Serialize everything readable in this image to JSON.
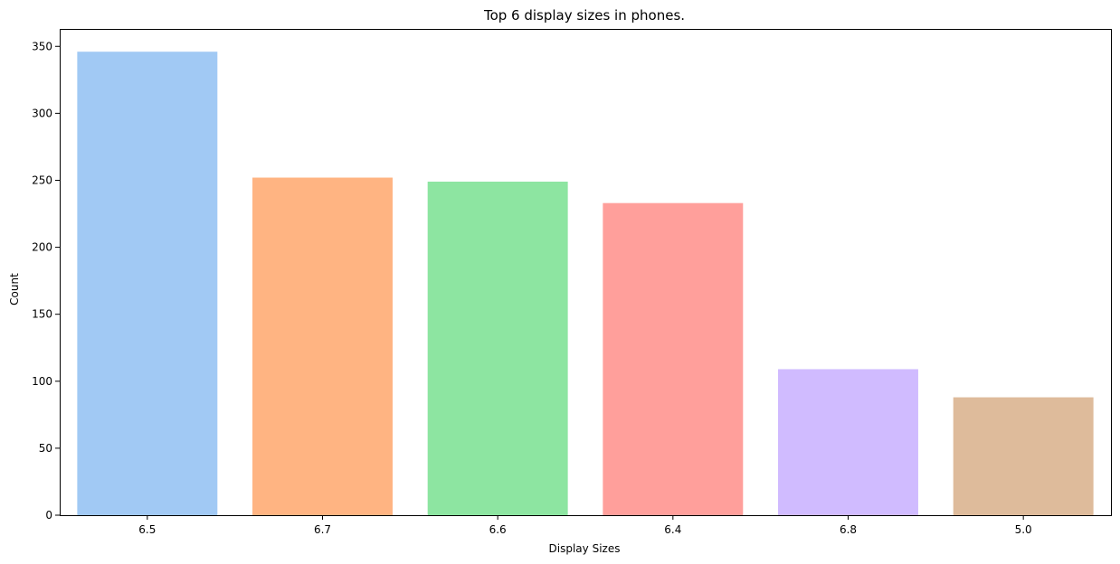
{
  "chart_data": {
    "type": "bar",
    "title": "Top 6 display sizes in phones.",
    "xlabel": "Display Sizes",
    "ylabel": "Count",
    "categories": [
      "6.5",
      "6.7",
      "6.6",
      "6.4",
      "6.8",
      "5.0"
    ],
    "values": [
      346,
      252,
      249,
      233,
      109,
      88
    ],
    "colors": [
      "#a1c9f4",
      "#ffb482",
      "#8de5a1",
      "#ff9f9b",
      "#d0bbff",
      "#debb9b"
    ],
    "yticks": [
      0,
      50,
      100,
      150,
      200,
      250,
      300,
      350
    ],
    "ylim": [
      0,
      363
    ],
    "grid": false,
    "legend": "none"
  }
}
